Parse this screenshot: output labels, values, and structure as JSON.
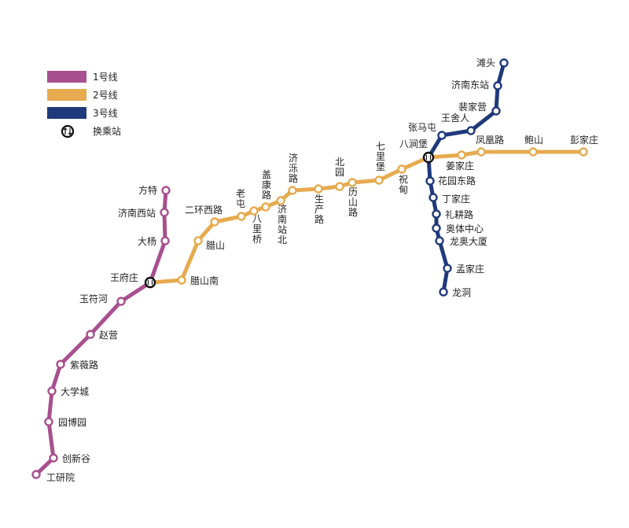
{
  "legend": {
    "items": [
      {
        "label": "1号线",
        "color": "#a8508f"
      },
      {
        "label": "2号线",
        "color": "#e6aa4f"
      },
      {
        "label": "3号线",
        "color": "#1f3a7a"
      }
    ],
    "transfer_label": "换乘站",
    "transfer_icon": "transfer-arrows-icon"
  },
  "lines": {
    "line1": {
      "name": "1号线",
      "color": "#a8508f",
      "stations": [
        "方特",
        "济南西站",
        "大杨",
        "王府庄",
        "玉符河",
        "赵营",
        "紫薇路",
        "大学城",
        "园博园",
        "创新谷",
        "工研院"
      ]
    },
    "line2": {
      "name": "2号线",
      "color": "#e6aa4f",
      "stations": [
        "王府庄",
        "腊山南",
        "腊山",
        "二环西路",
        "老屯",
        "八里桥",
        "盖康路",
        "济南站北",
        "济泺路",
        "生产路",
        "北园",
        "历山路",
        "七里堡",
        "祝甸",
        "八涧堡",
        "姜家庄",
        "凤凰路",
        "鲍山",
        "彭家庄"
      ]
    },
    "line3": {
      "name": "3号线",
      "color": "#1f3a7a",
      "stations": [
        "滩头",
        "济南东站",
        "裴家营",
        "王舍人",
        "张马屯",
        "八涧堡",
        "花园东路",
        "丁家庄",
        "礼耕路",
        "奥体中心",
        "龙奥大厦",
        "孟家庄",
        "龙洞"
      ]
    }
  },
  "transfer_stations": [
    "王府庄",
    "八涧堡"
  ]
}
